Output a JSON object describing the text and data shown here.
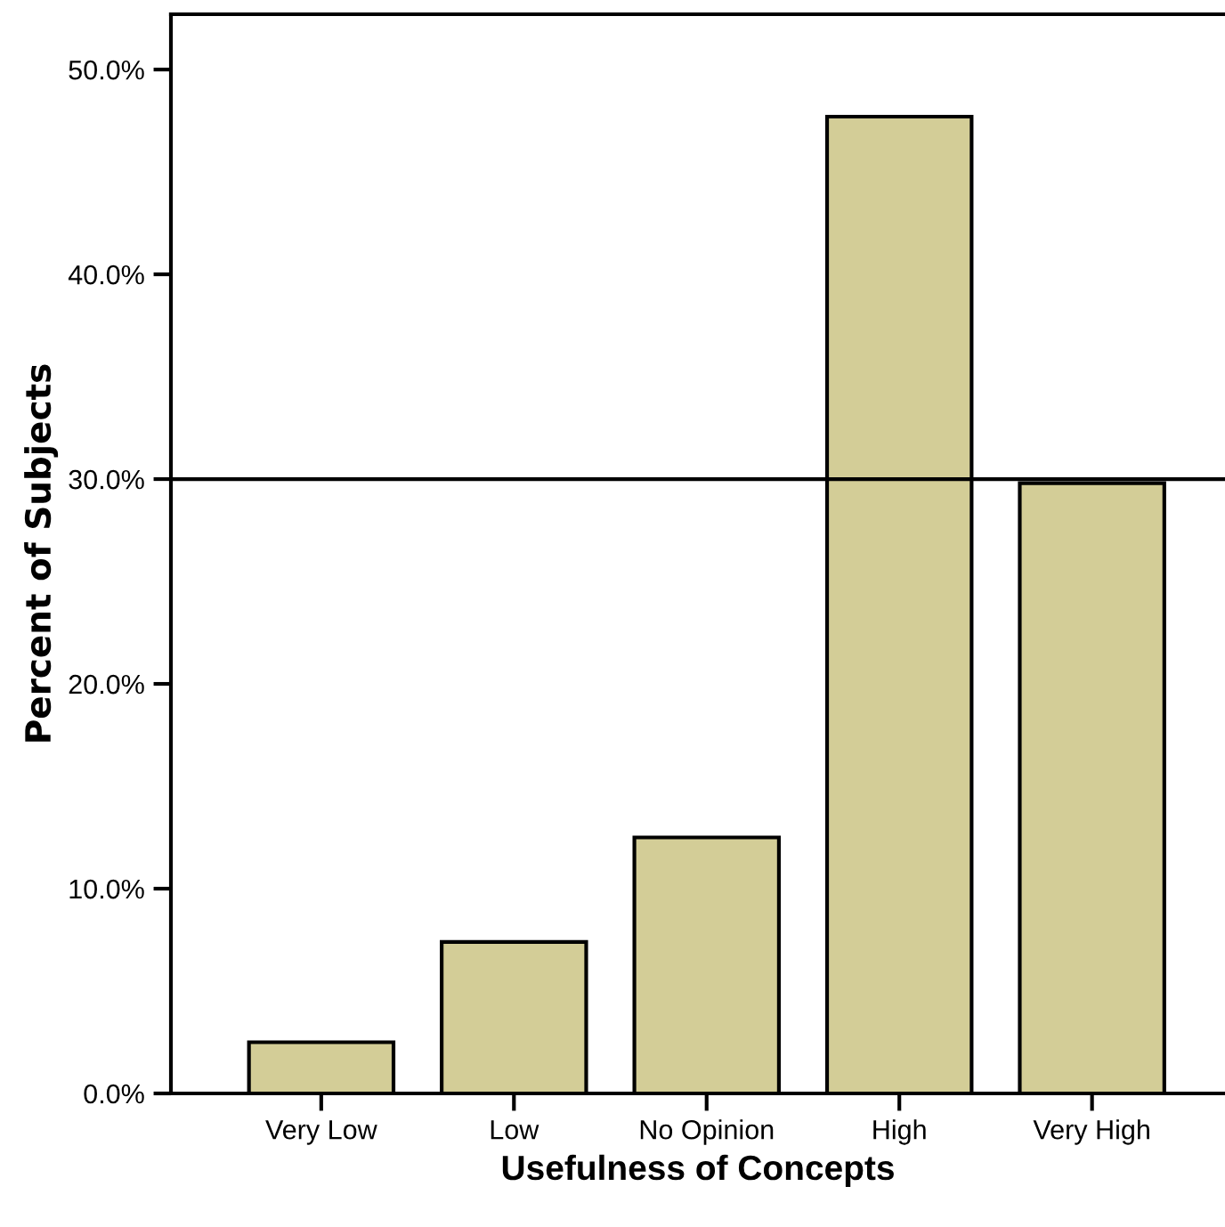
{
  "chart_data": {
    "type": "bar",
    "xlabel": "Usefulness of Concepts",
    "ylabel": "Percent of Subjects",
    "categories": [
      "Very Low",
      "Low",
      "No Opinion",
      "High",
      "Very High"
    ],
    "values": [
      2.5,
      7.4,
      12.5,
      47.7,
      29.8
    ],
    "color": "#d3cd97",
    "ylim": [
      0,
      52.7
    ],
    "yticks": [
      {
        "value": 0,
        "label": "0.0%"
      },
      {
        "value": 10,
        "label": "10.0%"
      },
      {
        "value": 20,
        "label": "20.0%"
      },
      {
        "value": 30,
        "label": "30.0%"
      },
      {
        "value": 40,
        "label": "40.0%"
      },
      {
        "value": 50,
        "label": "50.0%"
      }
    ],
    "ref_lines": [
      {
        "axis": "y",
        "value": 30,
        "color": "#000000"
      }
    ],
    "grid": false,
    "legend": false
  }
}
